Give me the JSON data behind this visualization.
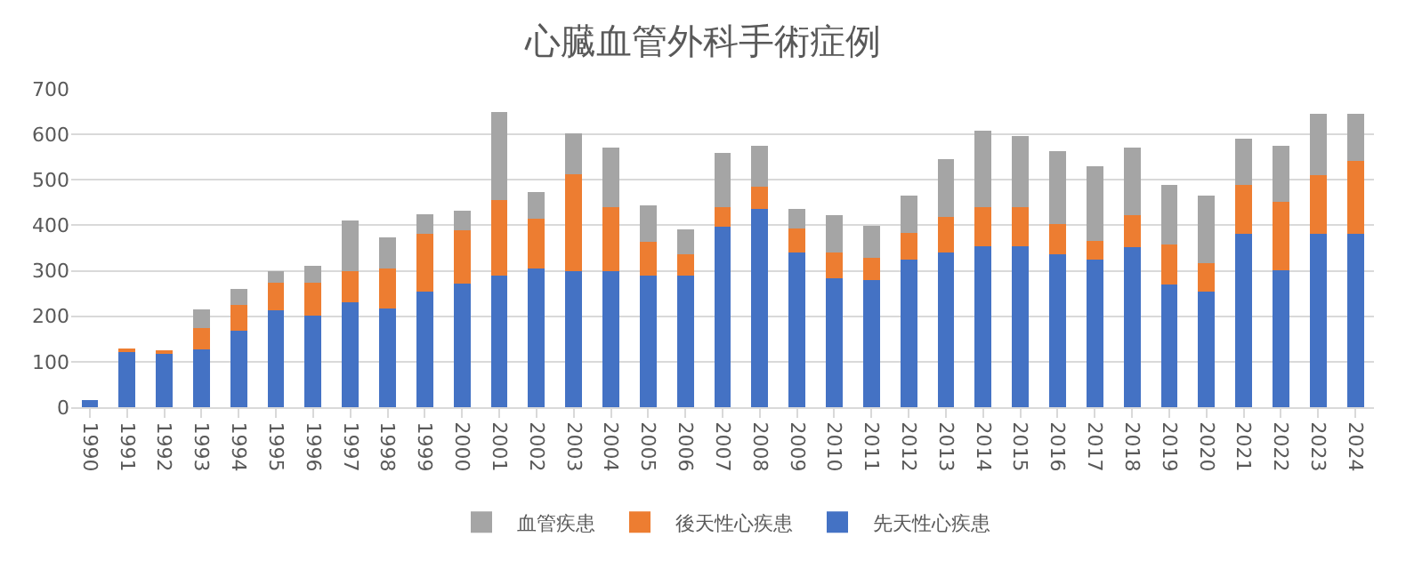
{
  "chart_data": {
    "type": "bar",
    "title": "心臓血管外科手術症例",
    "stacked": true,
    "categories": [
      "1990",
      "1991",
      "1992",
      "1993",
      "1994",
      "1995",
      "1996",
      "1997",
      "1998",
      "1999",
      "2000",
      "2001",
      "2002",
      "2003",
      "2004",
      "2005",
      "2006",
      "2007",
      "2008",
      "2009",
      "2010",
      "2011",
      "2012",
      "2013",
      "2014",
      "2015",
      "2016",
      "2017",
      "2018",
      "2019",
      "2020",
      "2021",
      "2022",
      "2023",
      "2024"
    ],
    "series": [
      {
        "name": "先天性心疾患",
        "color": "#4472c4",
        "values": [
          15,
          123,
          119,
          127,
          168,
          214,
          201,
          231,
          218,
          255,
          272,
          289,
          306,
          299,
          299,
          289,
          289,
          396,
          437,
          340,
          284,
          280,
          325,
          340,
          354,
          354,
          336,
          325,
          351,
          269,
          254,
          381,
          302,
          381,
          381
        ]
      },
      {
        "name": "後天性心疾患",
        "color": "#ed7d31",
        "values": [
          0,
          4,
          4,
          48,
          56,
          60,
          73,
          68,
          88,
          126,
          117,
          166,
          109,
          213,
          141,
          74,
          47,
          44,
          48,
          53,
          56,
          48,
          59,
          78,
          86,
          86,
          67,
          41,
          71,
          89,
          63,
          108,
          149,
          130,
          160
        ]
      },
      {
        "name": "血管疾患",
        "color": "#a5a5a5",
        "values": [
          0,
          0,
          0,
          41,
          37,
          25,
          36,
          111,
          67,
          44,
          44,
          194,
          59,
          90,
          131,
          81,
          56,
          120,
          90,
          44,
          82,
          71,
          82,
          127,
          168,
          157,
          160,
          164,
          149,
          131,
          149,
          101,
          124,
          135,
          105
        ]
      }
    ],
    "ylim": [
      0,
      700
    ],
    "yticks": [
      0,
      100,
      200,
      300,
      400,
      500,
      600,
      700
    ],
    "grid": "y",
    "legend": "bottom"
  }
}
